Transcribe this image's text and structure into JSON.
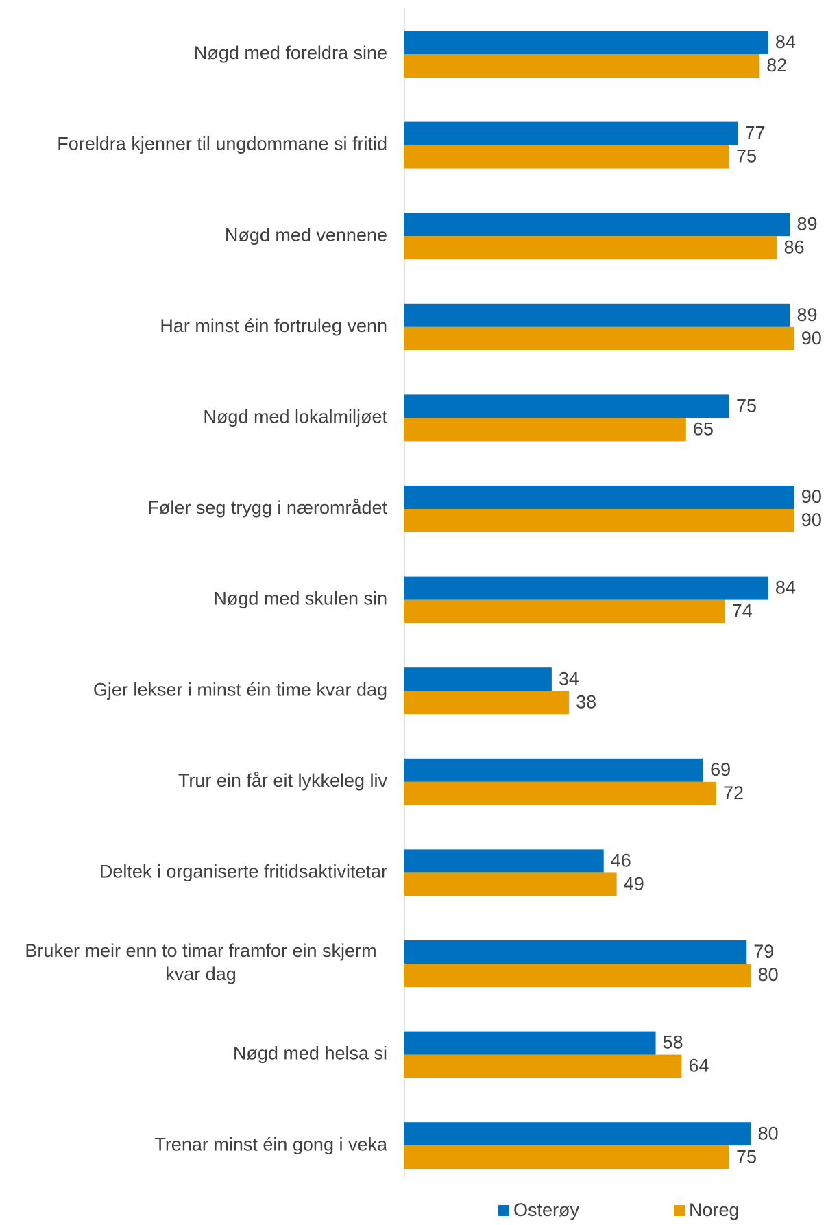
{
  "chart_data": {
    "type": "bar",
    "orientation": "horizontal",
    "categories": [
      "Nøgd med foreldra sine",
      "Foreldra kjenner til ungdommane si fritid",
      "Nøgd med vennene",
      "Har minst éin fortruleg venn",
      "Nøgd med lokalmiljøet",
      "Føler seg trygg i nærområdet",
      "Nøgd med skulen sin",
      "Gjer lekser i minst éin time kvar dag",
      "Trur ein får eit lykkeleg liv",
      "Deltek i organiserte fritidsaktivitetar",
      "Bruker meir enn to timar framfor ein skjerm kvar dag",
      "Nøgd med helsa si",
      "Trenar minst éin gong i veka"
    ],
    "category_lines": [
      [
        "Nøgd med foreldra sine"
      ],
      [
        "Foreldra kjenner til ungdommane si fritid"
      ],
      [
        "Nøgd med vennene"
      ],
      [
        "Har minst éin fortruleg venn"
      ],
      [
        "Nøgd med lokalmiljøet"
      ],
      [
        "Føler seg trygg i nærområdet"
      ],
      [
        "Nøgd med skulen sin"
      ],
      [
        "Gjer lekser i minst éin time kvar dag"
      ],
      [
        "Trur ein får eit lykkeleg liv"
      ],
      [
        "Deltek i organiserte fritidsaktivitetar"
      ],
      [
        "Bruker meir enn to timar framfor ein skjerm",
        "kvar dag"
      ],
      [
        "Nøgd med helsa si"
      ],
      [
        "Trenar minst éin gong i veka"
      ]
    ],
    "series": [
      {
        "name": "Osterøy",
        "color": "#0070C0",
        "values": [
          84,
          77,
          89,
          89,
          75,
          90,
          84,
          34,
          69,
          46,
          79,
          58,
          80
        ]
      },
      {
        "name": "Noreg",
        "color": "#E89C00",
        "values": [
          82,
          75,
          86,
          90,
          65,
          90,
          74,
          38,
          72,
          49,
          80,
          64,
          75
        ]
      }
    ],
    "xlim": [
      0,
      100
    ],
    "grid": false,
    "data_labels": true,
    "legend": "bottom",
    "title": "",
    "xlabel": "",
    "ylabel": ""
  }
}
